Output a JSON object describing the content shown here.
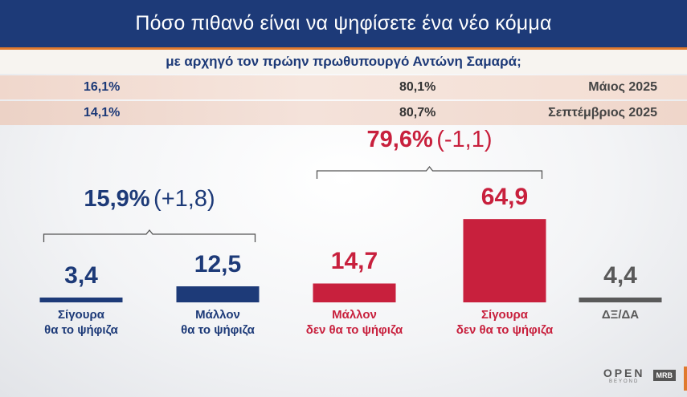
{
  "header": {
    "title": "Πόσο πιθανό είναι να ψηφίσετε ένα νέο κόμμα",
    "subtitle": "με αρχηγό τον πρώην πρωθυπουργό Αντώνη Σαμαρά;"
  },
  "comparison": [
    {
      "left": "16,1%",
      "mid": "80,1%",
      "period": "Μάιος 2025"
    },
    {
      "left": "14,1%",
      "mid": "80,7%",
      "period": "Σεπτέμβριος 2025"
    }
  ],
  "colors": {
    "blue": "#1d3a78",
    "red": "#c8203d",
    "gray": "#5a5a5a",
    "orange": "#e07a2e"
  },
  "chart_data": {
    "type": "bar",
    "categories": [
      "Σίγουρα θα το ψήφιζα",
      "Μάλλον θα το ψήφιζα",
      "Μάλλον δεν θα το ψήφιζα",
      "Σίγουρα δεν θα το ψήφιζα",
      "ΔΞ/ΔΑ"
    ],
    "category_lines": [
      [
        "Σίγουρα",
        "θα το ψήφιζα"
      ],
      [
        "Μάλλον",
        "θα το ψήφιζα"
      ],
      [
        "Μάλλον",
        "δεν θα το ψήφιζα"
      ],
      [
        "Σίγουρα",
        "δεν θα το ψήφιζα"
      ],
      [
        "ΔΞ/ΔΑ"
      ]
    ],
    "values": [
      3.4,
      12.5,
      14.7,
      64.9,
      4.4
    ],
    "value_labels": [
      "3,4",
      "12,5",
      "14,7",
      "64,9",
      "4,4"
    ],
    "colors": [
      "blue",
      "blue",
      "red",
      "red",
      "gray"
    ],
    "groups": [
      {
        "members": [
          0,
          1
        ],
        "total": "15,9%",
        "change": "(+1,8)",
        "color": "blue"
      },
      {
        "members": [
          2,
          3
        ],
        "total": "79,6%",
        "change": "(-1,1)",
        "color": "red"
      }
    ]
  },
  "logos": {
    "brand": "OPEN",
    "brand_sub": "BEYOND",
    "pollster": "MRB"
  }
}
